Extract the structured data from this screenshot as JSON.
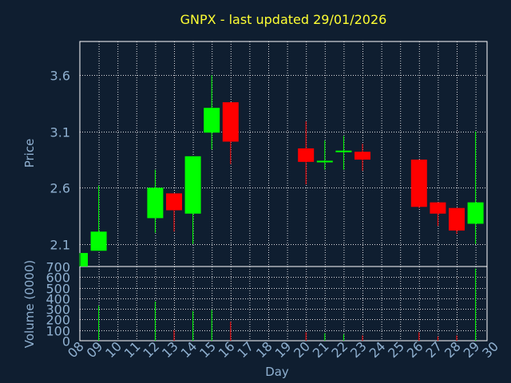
{
  "chart_data": {
    "type": "candlestick",
    "title": "GNPX - last updated 29/01/2026",
    "colors": {
      "background": "#0f1e30",
      "grid": "#ffffff",
      "axis_text": "#8fb0d0",
      "title": "#ffff33",
      "up": "#00ff00",
      "down": "#ff0000"
    },
    "price_panel": {
      "ylabel": "Price",
      "ylim": [
        1.9,
        3.9
      ],
      "yticks": [
        "2.1",
        "2.6",
        "3.1",
        "3.6"
      ],
      "grid": true
    },
    "volume_panel": {
      "ylabel": "Volume (0000)",
      "ylim": [
        0,
        700
      ],
      "yticks": [
        "0",
        "100",
        "200",
        "300",
        "400",
        "500",
        "600",
        "700"
      ],
      "grid": true
    },
    "xlabel": "Day",
    "xticks": [
      "08",
      "09",
      "10",
      "11",
      "12",
      "13",
      "14",
      "15",
      "16",
      "17",
      "18",
      "19",
      "20",
      "21",
      "22",
      "23",
      "24",
      "25",
      "26",
      "27",
      "28",
      "29",
      "30"
    ],
    "candles": [
      {
        "day": "08",
        "open": 1.9,
        "high": 2.02,
        "low": 1.9,
        "close": 2.02,
        "volume": 0
      },
      {
        "day": "09",
        "open": 2.04,
        "high": 2.62,
        "low": 2.04,
        "close": 2.21,
        "volume": 330
      },
      {
        "day": "12",
        "open": 2.33,
        "high": 2.76,
        "low": 2.2,
        "close": 2.6,
        "volume": 370
      },
      {
        "day": "13",
        "open": 2.55,
        "high": 2.55,
        "low": 2.21,
        "close": 2.4,
        "volume": 100
      },
      {
        "day": "14",
        "open": 2.37,
        "high": 2.88,
        "low": 2.1,
        "close": 2.88,
        "volume": 280
      },
      {
        "day": "15",
        "open": 3.09,
        "high": 3.6,
        "low": 2.94,
        "close": 3.31,
        "volume": 290
      },
      {
        "day": "16",
        "open": 3.36,
        "high": 3.36,
        "low": 2.81,
        "close": 3.01,
        "volume": 180
      },
      {
        "day": "20",
        "open": 2.95,
        "high": 3.19,
        "low": 2.63,
        "close": 2.83,
        "volume": 80
      },
      {
        "day": "21",
        "open": 2.83,
        "high": 3.02,
        "low": 2.76,
        "close": 2.84,
        "volume": 70
      },
      {
        "day": "22",
        "open": 2.92,
        "high": 3.06,
        "low": 2.76,
        "close": 2.93,
        "volume": 60
      },
      {
        "day": "23",
        "open": 2.92,
        "high": 2.99,
        "low": 2.75,
        "close": 2.85,
        "volume": 50
      },
      {
        "day": "26",
        "open": 2.85,
        "high": 2.85,
        "low": 2.42,
        "close": 2.43,
        "volume": 80
      },
      {
        "day": "27",
        "open": 2.47,
        "high": 2.47,
        "low": 2.26,
        "close": 2.37,
        "volume": 40
      },
      {
        "day": "28",
        "open": 2.42,
        "high": 2.42,
        "low": 2.19,
        "close": 2.22,
        "volume": 50
      },
      {
        "day": "29",
        "open": 2.28,
        "high": 3.1,
        "low": 2.1,
        "close": 2.47,
        "volume": 680
      }
    ]
  }
}
